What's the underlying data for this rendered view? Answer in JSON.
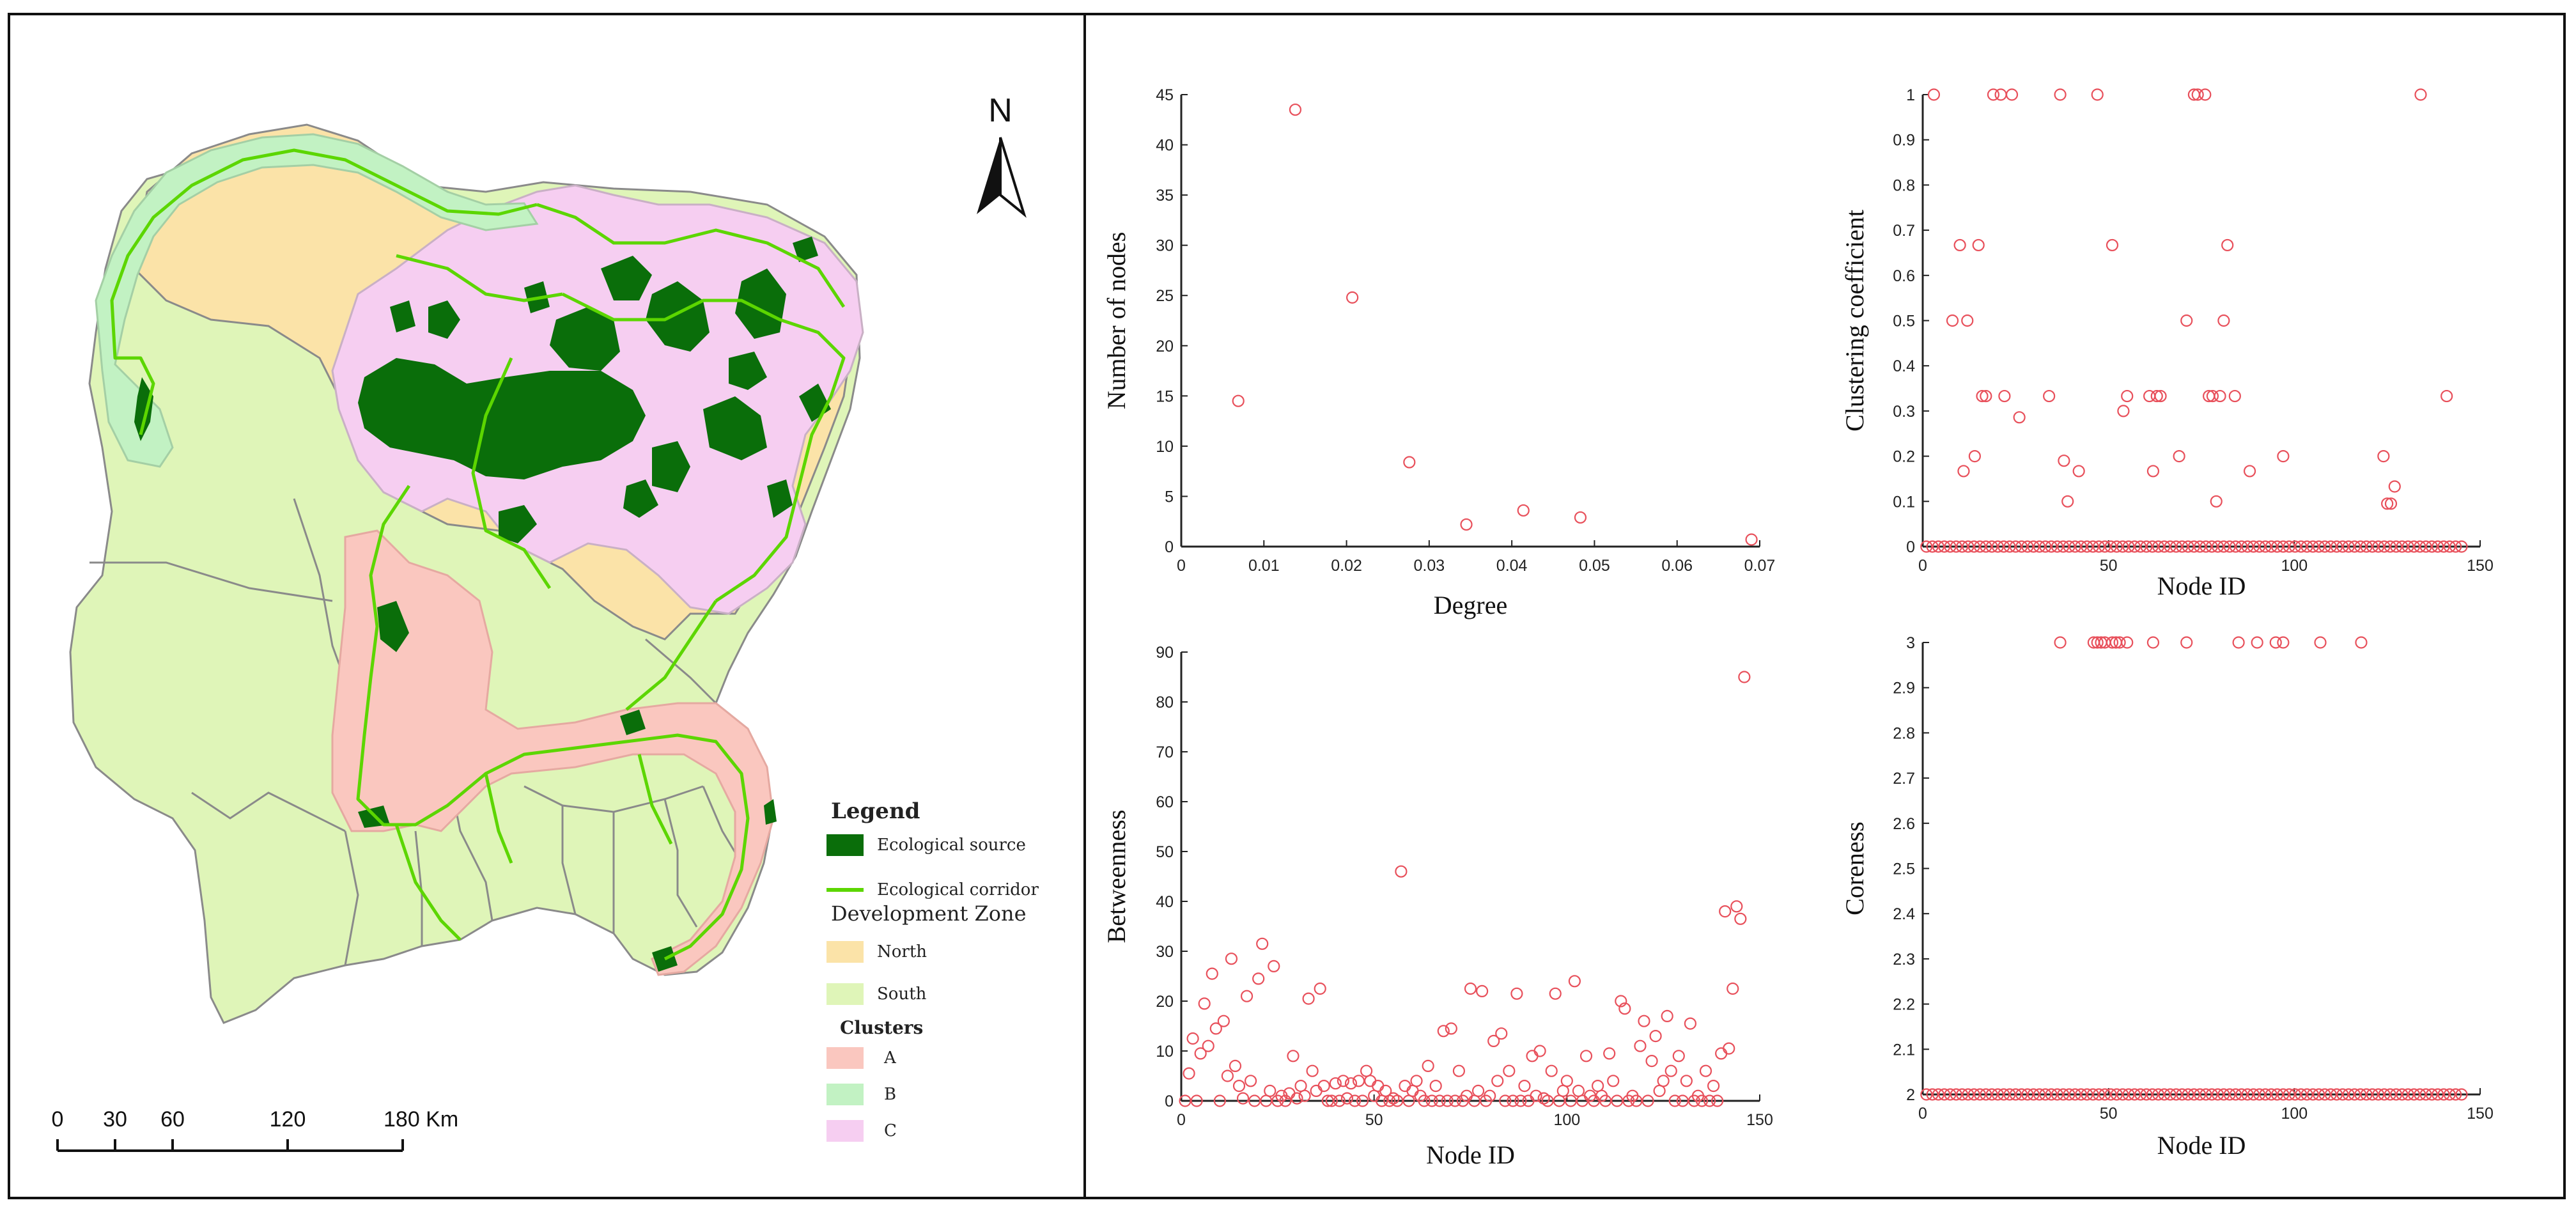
{
  "map": {
    "north_label": "N",
    "scale_bar": {
      "labels": [
        "0",
        "30",
        "60",
        "120",
        "180 Km"
      ]
    },
    "legend": {
      "title": "Legend",
      "items": [
        {
          "label": "Ecological source",
          "swatch": "fill",
          "color": "#0a6e0a"
        },
        {
          "label": "Ecological corridor",
          "swatch": "line",
          "color": "#5cd600"
        }
      ],
      "zone_title": "Development Zone",
      "zones": [
        {
          "label": "North",
          "color": "#fbe3a8"
        },
        {
          "label": "South",
          "color": "#dff5b8"
        }
      ],
      "clusters_title": "Clusters",
      "clusters": [
        {
          "label": "A",
          "color": "#fac7bf"
        },
        {
          "label": "B",
          "color": "#c2f2c3"
        },
        {
          "label": "C",
          "color": "#f6cef1"
        }
      ]
    }
  },
  "colors": {
    "marker": "#e8505b",
    "axis": "#222222"
  },
  "chart_data": [
    {
      "type": "scatter",
      "xlabel": "Degree",
      "ylabel": "Number of nodes",
      "xlim": [
        0,
        0.07
      ],
      "ylim": [
        0,
        45
      ],
      "xticks": [
        0,
        0.01,
        0.02,
        0.03,
        0.04,
        0.05,
        0.06,
        0.07
      ],
      "xtick_labels": [
        "0",
        "0.01",
        "0.02",
        "0.03",
        "0.04",
        "0.05",
        "0.06",
        "0.07"
      ],
      "yticks": [
        0,
        5,
        10,
        15,
        20,
        25,
        30,
        35,
        40,
        45
      ],
      "ytick_labels": [
        "0",
        "5",
        "10",
        "15",
        "20",
        "25",
        "30",
        "35",
        "40",
        "45"
      ],
      "points": [
        [
          0.0069,
          14.5
        ],
        [
          0.0138,
          43.5
        ],
        [
          0.0207,
          24.8
        ],
        [
          0.0276,
          8.4
        ],
        [
          0.0345,
          2.2
        ],
        [
          0.0414,
          3.6
        ],
        [
          0.0483,
          2.9
        ],
        [
          0.069,
          0.7
        ]
      ]
    },
    {
      "type": "scatter",
      "xlabel": "Node ID",
      "ylabel": "Clustering coefficient",
      "xlim": [
        0,
        150
      ],
      "ylim": [
        0,
        1
      ],
      "xticks": [
        0,
        50,
        100,
        150
      ],
      "xtick_labels": [
        "0",
        "50",
        "100",
        "150"
      ],
      "yticks": [
        0,
        0.1,
        0.2,
        0.3,
        0.4,
        0.5,
        0.6,
        0.7,
        0.8,
        0.9,
        1
      ],
      "ytick_labels": [
        "0",
        "0.1",
        "0.2",
        "0.3",
        "0.4",
        "0.5",
        "0.6",
        "0.7",
        "0.8",
        "0.9",
        "1"
      ],
      "baseline": {
        "value": 0,
        "x_from": 1,
        "x_to": 145,
        "step": 1.6
      },
      "points": [
        [
          3,
          1
        ],
        [
          19,
          1
        ],
        [
          21,
          1
        ],
        [
          24,
          1
        ],
        [
          37,
          1
        ],
        [
          47,
          1
        ],
        [
          73,
          1
        ],
        [
          74,
          1
        ],
        [
          76,
          1
        ],
        [
          134,
          1
        ],
        [
          10,
          0.667
        ],
        [
          15,
          0.667
        ],
        [
          51,
          0.667
        ],
        [
          82,
          0.667
        ],
        [
          8,
          0.5
        ],
        [
          12,
          0.5
        ],
        [
          71,
          0.5
        ],
        [
          81,
          0.5
        ],
        [
          16,
          0.333
        ],
        [
          17,
          0.333
        ],
        [
          22,
          0.333
        ],
        [
          34,
          0.333
        ],
        [
          55,
          0.333
        ],
        [
          61,
          0.333
        ],
        [
          63,
          0.333
        ],
        [
          64,
          0.333
        ],
        [
          77,
          0.333
        ],
        [
          78,
          0.333
        ],
        [
          80,
          0.333
        ],
        [
          84,
          0.333
        ],
        [
          141,
          0.333
        ],
        [
          54,
          0.3
        ],
        [
          26,
          0.286
        ],
        [
          14,
          0.2
        ],
        [
          38,
          0.19
        ],
        [
          69,
          0.2
        ],
        [
          97,
          0.2
        ],
        [
          124,
          0.2
        ],
        [
          11,
          0.167
        ],
        [
          42,
          0.167
        ],
        [
          62,
          0.167
        ],
        [
          88,
          0.167
        ],
        [
          127,
          0.133
        ],
        [
          39,
          0.1
        ],
        [
          79,
          0.1
        ],
        [
          125,
          0.095
        ],
        [
          126,
          0.095
        ]
      ]
    },
    {
      "type": "scatter",
      "xlabel": "Node ID",
      "ylabel": "Betweenness",
      "xlim": [
        0,
        150
      ],
      "ylim": [
        0,
        90
      ],
      "xticks": [
        0,
        50,
        100,
        150
      ],
      "xtick_labels": [
        "0",
        "50",
        "100",
        "150"
      ],
      "yticks": [
        0,
        10,
        20,
        30,
        40,
        50,
        60,
        70,
        80,
        90
      ],
      "ytick_labels": [
        "0",
        "10",
        "20",
        "30",
        "40",
        "50",
        "60",
        "70",
        "80",
        "90"
      ],
      "points": [
        [
          1,
          0
        ],
        [
          2,
          5.5
        ],
        [
          3,
          12.5
        ],
        [
          4,
          0
        ],
        [
          5,
          9.5
        ],
        [
          6,
          19.5
        ],
        [
          7,
          11
        ],
        [
          8,
          25.5
        ],
        [
          9,
          14.5
        ],
        [
          10,
          0
        ],
        [
          11,
          16
        ],
        [
          12,
          5
        ],
        [
          13,
          28.5
        ],
        [
          14,
          7
        ],
        [
          15,
          3
        ],
        [
          16,
          0.5
        ],
        [
          17,
          21
        ],
        [
          18,
          4
        ],
        [
          19,
          0
        ],
        [
          20,
          24.5
        ],
        [
          21,
          31.5
        ],
        [
          22,
          0
        ],
        [
          23,
          2
        ],
        [
          24,
          27
        ],
        [
          25,
          0
        ],
        [
          26,
          1
        ],
        [
          27,
          0
        ],
        [
          28,
          1.5
        ],
        [
          29,
          9
        ],
        [
          30,
          0.5
        ],
        [
          31,
          3
        ],
        [
          32,
          1
        ],
        [
          33,
          20.5
        ],
        [
          34,
          6
        ],
        [
          35,
          2
        ],
        [
          36,
          22.5
        ],
        [
          37,
          3
        ],
        [
          38,
          0
        ],
        [
          39,
          0
        ],
        [
          40,
          3.5
        ],
        [
          41,
          0
        ],
        [
          42,
          4
        ],
        [
          43,
          0.5
        ],
        [
          44,
          3.5
        ],
        [
          45,
          0
        ],
        [
          46,
          4
        ],
        [
          47,
          0
        ],
        [
          48,
          6
        ],
        [
          49,
          4
        ],
        [
          50,
          1
        ],
        [
          51,
          3
        ],
        [
          52,
          0
        ],
        [
          53,
          2
        ],
        [
          54,
          0
        ],
        [
          55,
          0.5
        ],
        [
          56,
          0
        ],
        [
          57,
          46
        ],
        [
          58,
          3
        ],
        [
          59,
          0
        ],
        [
          60,
          2
        ],
        [
          61,
          4
        ],
        [
          62,
          1
        ],
        [
          63,
          0
        ],
        [
          64,
          7
        ],
        [
          65,
          0
        ],
        [
          66,
          3
        ],
        [
          67,
          0
        ],
        [
          68,
          14
        ],
        [
          69,
          0
        ],
        [
          70,
          14.5
        ],
        [
          71,
          0
        ],
        [
          72,
          6
        ],
        [
          73,
          0
        ],
        [
          74,
          1
        ],
        [
          75,
          22.5
        ],
        [
          76,
          0
        ],
        [
          77,
          2
        ],
        [
          78,
          22
        ],
        [
          79,
          0
        ],
        [
          80,
          1
        ],
        [
          81,
          12
        ],
        [
          82,
          4
        ],
        [
          83,
          13.5
        ],
        [
          84,
          0
        ],
        [
          85,
          6
        ],
        [
          86,
          0
        ],
        [
          87,
          21.5
        ],
        [
          88,
          0
        ],
        [
          89,
          3
        ],
        [
          90,
          0
        ],
        [
          91,
          9
        ],
        [
          92,
          1
        ],
        [
          93,
          10
        ],
        [
          94,
          0.5
        ],
        [
          95,
          0
        ],
        [
          96,
          6
        ],
        [
          97,
          21.5
        ],
        [
          98,
          0
        ],
        [
          99,
          2
        ],
        [
          100,
          4
        ],
        [
          101,
          0
        ],
        [
          102,
          24
        ],
        [
          103,
          2
        ],
        [
          104,
          0
        ],
        [
          105,
          9
        ],
        [
          106,
          1
        ],
        [
          107,
          0
        ],
        [
          108,
          3
        ],
        [
          109,
          1
        ],
        [
          110,
          0
        ],
        [
          111,
          9.5
        ],
        [
          112,
          4
        ],
        [
          113,
          0
        ],
        [
          114,
          20
        ],
        [
          115,
          18.5
        ],
        [
          116,
          0
        ],
        [
          117,
          1
        ],
        [
          118,
          0
        ],
        [
          119,
          11
        ],
        [
          120,
          16
        ],
        [
          121,
          0
        ],
        [
          122,
          8
        ],
        [
          123,
          13
        ],
        [
          124,
          2
        ],
        [
          125,
          4
        ],
        [
          126,
          17
        ],
        [
          127,
          6
        ],
        [
          128,
          0
        ],
        [
          129,
          9
        ],
        [
          130,
          0
        ],
        [
          131,
          4
        ],
        [
          132,
          15.5
        ],
        [
          133,
          0
        ],
        [
          134,
          1
        ],
        [
          135,
          0
        ],
        [
          136,
          6
        ],
        [
          137,
          0
        ],
        [
          138,
          3
        ],
        [
          139,
          0
        ],
        [
          140,
          9.5
        ],
        [
          141,
          38
        ],
        [
          142,
          10.5
        ],
        [
          143,
          22.5
        ],
        [
          144,
          39
        ],
        [
          145,
          36.5
        ],
        [
          146,
          85
        ]
      ]
    },
    {
      "type": "scatter",
      "xlabel": "Node ID",
      "ylabel": "Coreness",
      "xlim": [
        0,
        150
      ],
      "ylim": [
        2,
        3
      ],
      "xticks": [
        0,
        50,
        100,
        150
      ],
      "xtick_labels": [
        "0",
        "50",
        "100",
        "150"
      ],
      "yticks": [
        2,
        2.1,
        2.2,
        2.3,
        2.4,
        2.5,
        2.6,
        2.7,
        2.8,
        2.9,
        3
      ],
      "ytick_labels": [
        "2",
        "2.1",
        "2.2",
        "2.3",
        "2.4",
        "2.5",
        "2.6",
        "2.7",
        "2.8",
        "2.9",
        "3"
      ],
      "baseline": {
        "value": 2,
        "x_from": 1,
        "x_to": 145,
        "step": 1.6
      },
      "points": [
        [
          37,
          3
        ],
        [
          46,
          3
        ],
        [
          47,
          3
        ],
        [
          48,
          3
        ],
        [
          49,
          3
        ],
        [
          51,
          3
        ],
        [
          52,
          3
        ],
        [
          53,
          3
        ],
        [
          55,
          3
        ],
        [
          62,
          3
        ],
        [
          71,
          3
        ],
        [
          85,
          3
        ],
        [
          90,
          3
        ],
        [
          95,
          3
        ],
        [
          97,
          3
        ],
        [
          107,
          3
        ],
        [
          118,
          3
        ]
      ]
    }
  ]
}
